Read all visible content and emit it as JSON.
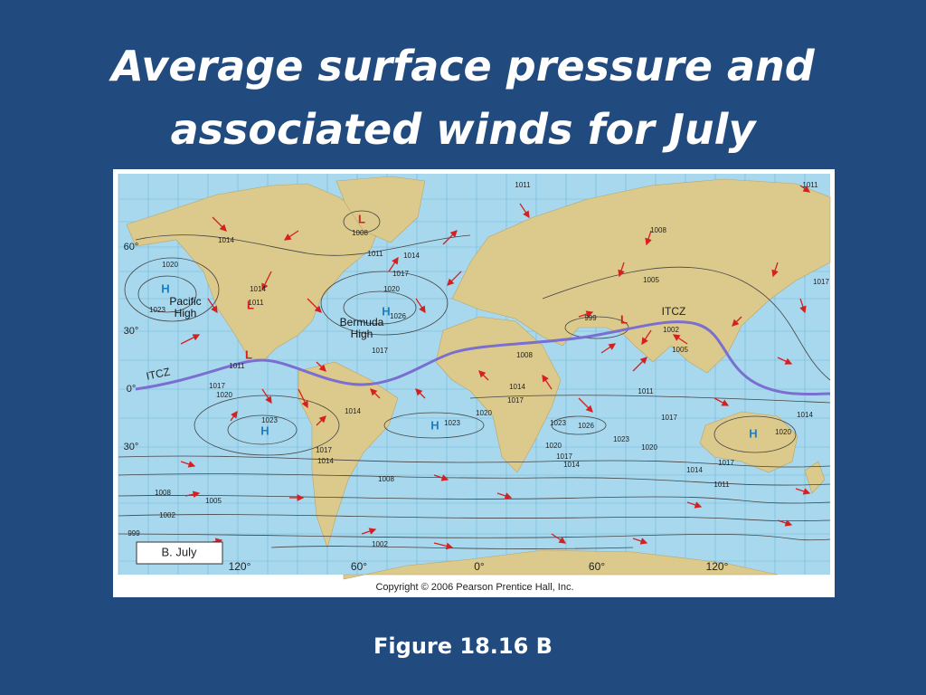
{
  "title": "Average surface pressure and associated winds for July",
  "caption": "Figure 18.16 B",
  "map": {
    "panel_label": "B. July",
    "copyright": "Copyright © 2006 Pearson Prentice Hall, Inc.",
    "latitude_labels": [
      "60°",
      "30°",
      "0°",
      "30°"
    ],
    "longitude_labels": [
      "120°",
      "60°",
      "0°",
      "60°",
      "120°"
    ],
    "pressure_symbols": [
      "L",
      "L",
      "L",
      "L",
      "H",
      "H",
      "H",
      "H",
      "H"
    ],
    "place_names": [
      "Pacific High",
      "Bermuda High"
    ],
    "itcz_labels": [
      "ITCZ",
      "ITCZ"
    ],
    "isobar_labels": [
      "1014",
      "1020",
      "1023",
      "1014",
      "1011",
      "1008",
      "1011",
      "1014",
      "1017",
      "1020",
      "1026",
      "1017",
      "1011",
      "1017",
      "1020",
      "1023",
      "1014",
      "1017",
      "1014",
      "1008",
      "1008",
      "1005",
      "1002",
      "999",
      "1002",
      "1011",
      "1011",
      "1008",
      "1005",
      "999",
      "1002",
      "1005",
      "1008",
      "1014",
      "1017",
      "1020",
      "1023",
      "1023",
      "1026",
      "1023",
      "1020",
      "1020",
      "1017",
      "1014",
      "1014",
      "1011",
      "1011",
      "1017",
      "1014",
      "1020",
      "1017",
      "1017"
    ]
  }
}
